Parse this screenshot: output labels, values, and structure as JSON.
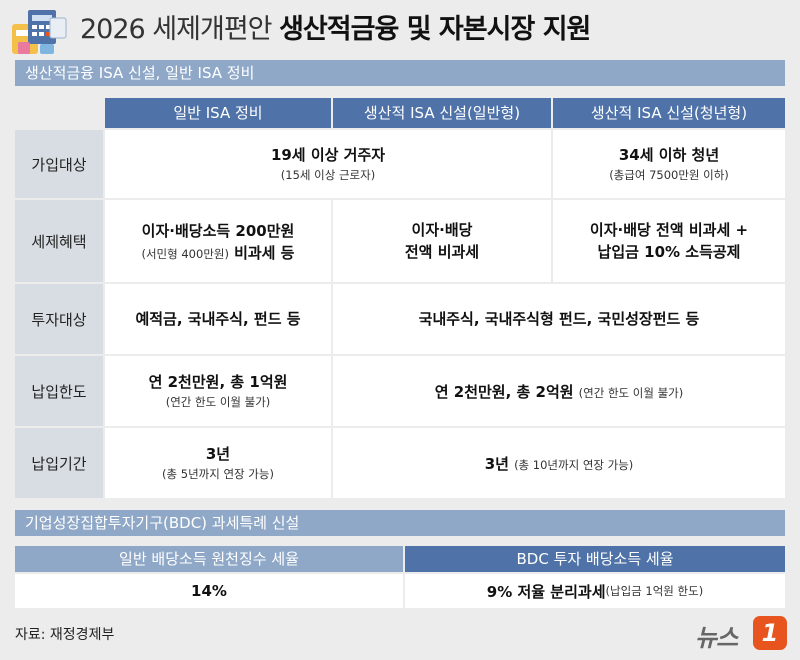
{
  "header": {
    "title_light": "2026 세제개편안",
    "title_bold": "생산적금융 및 자본시장 지원"
  },
  "section1": {
    "label": "생산적금융 ISA 신설, 일반 ISA 정비",
    "columns": [
      "일반 ISA 정비",
      "생산적 ISA 신설(일반형)",
      "생산적 ISA 신설(청년형)"
    ],
    "rows": {
      "eligibility": {
        "label": "가입대상",
        "merged_main": "19세 이상 거주자",
        "merged_sub": "(15세 이상 근로자)",
        "youth_main": "34세 이하 청년",
        "youth_sub": "(총급여 7500만원 이하)"
      },
      "tax_benefit": {
        "label": "세제혜택",
        "general_main": "이자·배당소득 200만원",
        "general_sub": "(서민형 400만원)",
        "general_tail": "비과세 등",
        "normal_line1": "이자·배당",
        "normal_line2": "전액 비과세",
        "youth_line1": "이자·배당 전액 비과세 +",
        "youth_line2": "납입금 10% 소득공제"
      },
      "investment": {
        "label": "투자대상",
        "general": "예적금, 국내주식, 펀드 등",
        "merged": "국내주식, 국내주식형 펀드, 국민성장펀드 등"
      },
      "limit": {
        "label": "납입한도",
        "general_main": "연 2천만원, 총 1억원",
        "general_sub": "(연간 한도 이월 불가)",
        "merged_main": "연 2천만원, 총 2억원",
        "merged_sub": "(연간 한도 이월 불가)"
      },
      "period": {
        "label": "납입기간",
        "general_main": "3년",
        "general_sub": "(총 5년까지 연장 가능)",
        "merged_main": "3년",
        "merged_sub": "(총 10년까지 연장 가능)"
      }
    }
  },
  "section2": {
    "label": "기업성장집합투자기구(BDC) 과세특례 신설",
    "left_head": "일반 배당소득 원천징수 세율",
    "left_value": "14%",
    "right_head": "BDC 투자 배당소득 세율",
    "right_main": "9% 저율 분리과세",
    "right_sub": "(납입금 1억원 한도)"
  },
  "footer": {
    "source": "자료: 재정경제부",
    "brand_text": "뉴스",
    "brand_badge": "1"
  },
  "colors": {
    "light_band": "#8fa8c8",
    "dark_band": "#4f73a8",
    "row_header": "#d8dde3",
    "background": "#ececec",
    "brand_orange": "#e8541e"
  }
}
